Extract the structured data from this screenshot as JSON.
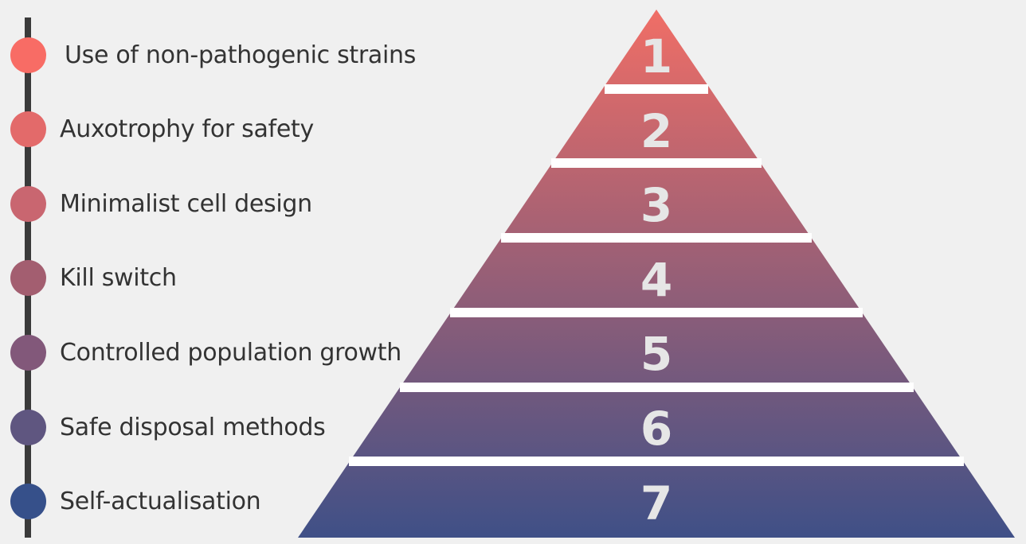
{
  "levels": [
    {
      "number": "1",
      "label": "Use of non-pathogenic strains",
      "color": "#f86c65"
    },
    {
      "number": "2",
      "label": "Auxotrophy for safety",
      "color": "#e36a6a"
    },
    {
      "number": "3",
      "label": "Minimalist cell design",
      "color": "#c96670"
    },
    {
      "number": "4",
      "label": "Kill switch",
      "color": "#a35e70"
    },
    {
      "number": "5",
      "label": "Controlled population growth",
      "color": "#82587a"
    },
    {
      "number": "6",
      "label": "Safe disposal methods",
      "color": "#5f5680"
    },
    {
      "number": "7",
      "label": "Self-actualisation",
      "color": "#36508a"
    }
  ],
  "pyramid_colors": {
    "top": "#f06e66",
    "bottom": "#3f5087"
  },
  "separator_color": "#ffffff",
  "timeline_color": "#3a3a3a"
}
